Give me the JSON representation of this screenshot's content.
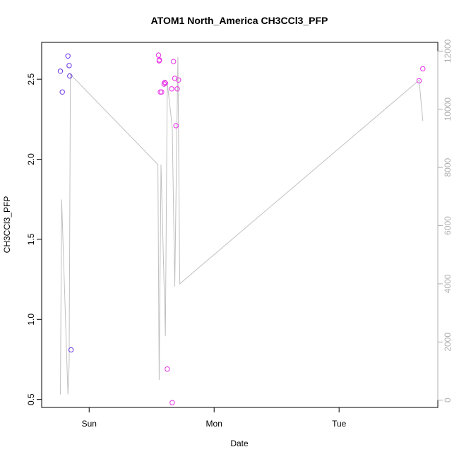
{
  "chart_data": {
    "type": "scatter",
    "title": "ATOM1 North_America CH3CCl3_PFP",
    "xlabel": "Date",
    "ylabel": "CH3CCl3_PFP",
    "x_tick_labels": [
      "Sun",
      "Mon",
      "Tue"
    ],
    "x_tick_positions_days": [
      1,
      2,
      3
    ],
    "xlim_days": [
      0.62,
      3.79
    ],
    "ylim": [
      0.45,
      2.73
    ],
    "y_ticks": [
      0.5,
      1.0,
      1.5,
      2.0,
      2.5
    ],
    "y_tick_labels": [
      "0.5",
      "1.0",
      "1.5",
      "2.0",
      "2.5"
    ],
    "right_axis": {
      "ylim": [
        0,
        12000
      ],
      "ticks": [
        0,
        2000,
        4000,
        6000,
        8000,
        10000,
        12000
      ],
      "tick_labels": [
        "0",
        "2000",
        "4000",
        "6000",
        "8000",
        "10000",
        "12000"
      ],
      "color": "#b0b0b0"
    },
    "x_origin_note": "x values in days; 1 = Sun 00:00, 2 = Mon 00:00, 3 = Tue 00:00",
    "series": [
      {
        "kind": "points",
        "color": "#6a33e6",
        "x": [
          0.77,
          0.785,
          0.83,
          0.84,
          0.845,
          0.855
        ],
        "y": [
          2.55,
          2.42,
          2.645,
          2.585,
          2.52,
          0.81
        ]
      },
      {
        "kind": "points",
        "color": "#e62ee6",
        "x": [
          1.555,
          1.56,
          1.562,
          1.57,
          1.58,
          1.6,
          1.605,
          1.61,
          1.625,
          1.66,
          1.665,
          1.675,
          1.685,
          1.695,
          1.705,
          1.715,
          3.64,
          3.67
        ],
        "y": [
          2.65,
          2.615,
          2.62,
          2.42,
          2.42,
          2.47,
          2.48,
          2.475,
          0.69,
          2.44,
          0.48,
          2.61,
          2.505,
          2.21,
          2.44,
          2.495,
          2.49,
          2.565
        ]
      },
      {
        "kind": "line",
        "color": "#c0c0c0",
        "axis": "right",
        "x": [
          0.77,
          0.78,
          0.83,
          0.84,
          0.85,
          1.55,
          1.56,
          1.575,
          1.61,
          1.625,
          1.665,
          1.685,
          1.71,
          1.725,
          3.64,
          3.67
        ],
        "y": [
          200,
          6900,
          200,
          1200,
          11200,
          8100,
          700,
          8100,
          2200,
          10900,
          9400,
          3900,
          11800,
          4000,
          11000,
          9600
        ]
      }
    ]
  }
}
